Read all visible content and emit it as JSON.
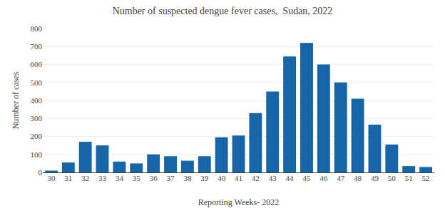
{
  "chart_data": {
    "type": "bar",
    "title": "Number of suspected dengue fever cases,  Sudan, 2022",
    "xlabel": "Reporting Weeks- 2022",
    "ylabel": "Number of cases",
    "categories": [
      "30",
      "31",
      "32",
      "33",
      "34",
      "35",
      "36",
      "37",
      "38",
      "39",
      "40",
      "41",
      "42",
      "43",
      "44",
      "45",
      "46",
      "47",
      "48",
      "49",
      "50",
      "51",
      "52"
    ],
    "values": [
      10,
      55,
      170,
      150,
      60,
      50,
      100,
      90,
      65,
      90,
      195,
      205,
      330,
      450,
      645,
      720,
      600,
      500,
      410,
      265,
      155,
      35,
      30
    ],
    "color": "#1565a8",
    "ylim": [
      0,
      800
    ],
    "yticks": [
      0,
      100,
      200,
      300,
      400,
      500,
      600,
      700,
      800
    ],
    "grid": true
  }
}
